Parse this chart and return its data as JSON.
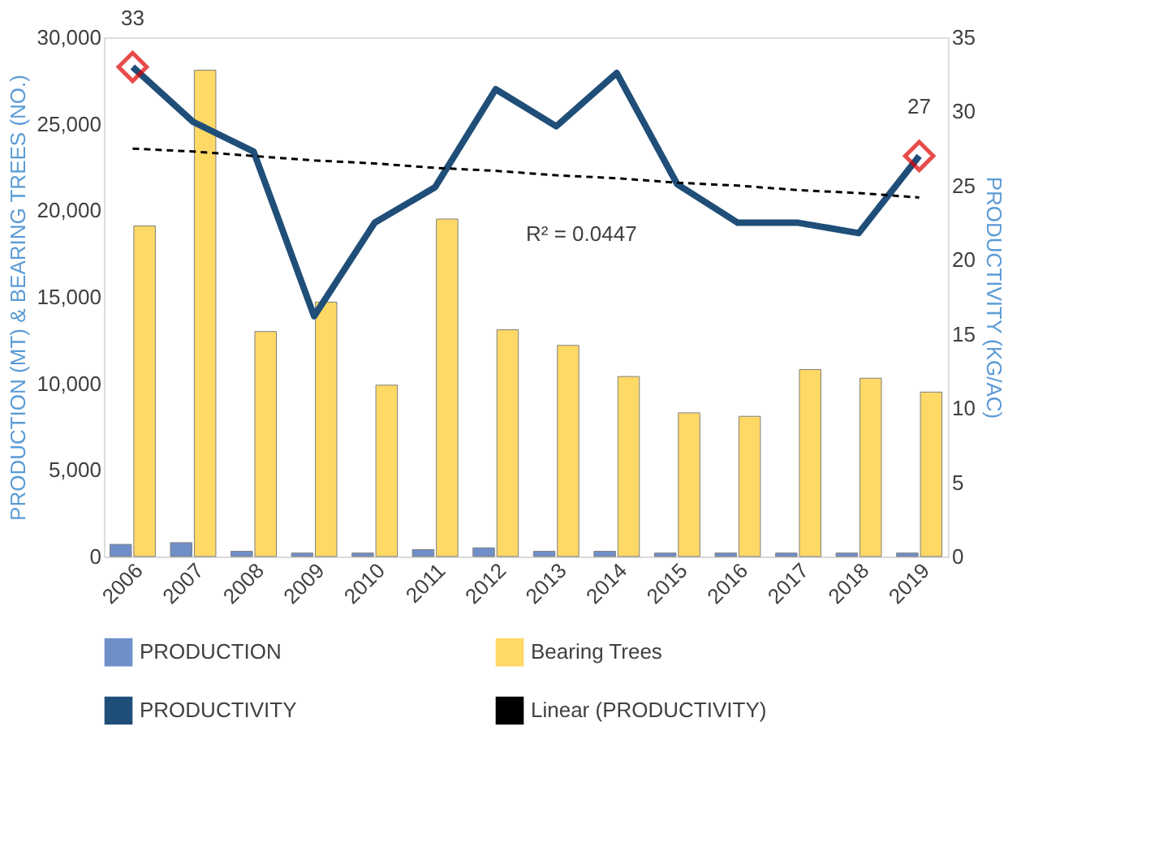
{
  "chart_data": {
    "type": "bar",
    "categories": [
      "2006",
      "2007",
      "2008",
      "2009",
      "2010",
      "2011",
      "2012",
      "2013",
      "2014",
      "2015",
      "2016",
      "2017",
      "2018",
      "2019"
    ],
    "series": [
      {
        "name": "PRODUCTION",
        "color": "#6f8fc9",
        "values": [
          700,
          800,
          300,
          200,
          200,
          400,
          500,
          300,
          300,
          200,
          200,
          200,
          200,
          200
        ]
      },
      {
        "name": "Bearing Trees",
        "color": "#ffd966",
        "values": [
          19100,
          28100,
          13000,
          14700,
          9900,
          19500,
          13100,
          12200,
          10400,
          8300,
          8100,
          10800,
          10300,
          9500
        ]
      },
      {
        "name": "PRODUCTIVITY",
        "type": "line",
        "axis": "y2",
        "color": "#1f4e79",
        "values": [
          33,
          29.3,
          27.3,
          16.2,
          22.5,
          24.9,
          31.5,
          29,
          32.6,
          25.1,
          22.5,
          22.5,
          21.8,
          27
        ],
        "value_labels": [
          "33",
          null,
          null,
          null,
          null,
          null,
          null,
          null,
          null,
          null,
          null,
          null,
          null,
          "27"
        ]
      },
      {
        "name": "Linear (PRODUCTIVITY)",
        "type": "line",
        "axis": "y2",
        "color": "#000000",
        "line_style": "dashed",
        "values": [
          27.5,
          27.3,
          27,
          26.7,
          26.5,
          26.2,
          26,
          25.7,
          25.5,
          25.2,
          25,
          24.7,
          24.5,
          24.2
        ]
      }
    ],
    "ylabel": "PRODUCTION (MT) & BEARING TREES (NO.)",
    "y2label": "PRODUCTIVITY (KG/AC)",
    "ylim": [
      0,
      30000
    ],
    "yticks": [
      {
        "value": 0,
        "label": "0"
      },
      {
        "value": 5000,
        "label": "5,000"
      },
      {
        "value": 10000,
        "label": "10,000"
      },
      {
        "value": 15000,
        "label": "15,000"
      },
      {
        "value": 20000,
        "label": "20,000"
      },
      {
        "value": 25000,
        "label": "25,000"
      },
      {
        "value": 30000,
        "label": "30,000"
      }
    ],
    "y2lim": [
      0,
      35
    ],
    "y2ticks": [
      0,
      5,
      10,
      15,
      20,
      25,
      30,
      35
    ],
    "annotations": [
      "R² = 0.0447"
    ],
    "grid": false,
    "legend": "bottom"
  }
}
